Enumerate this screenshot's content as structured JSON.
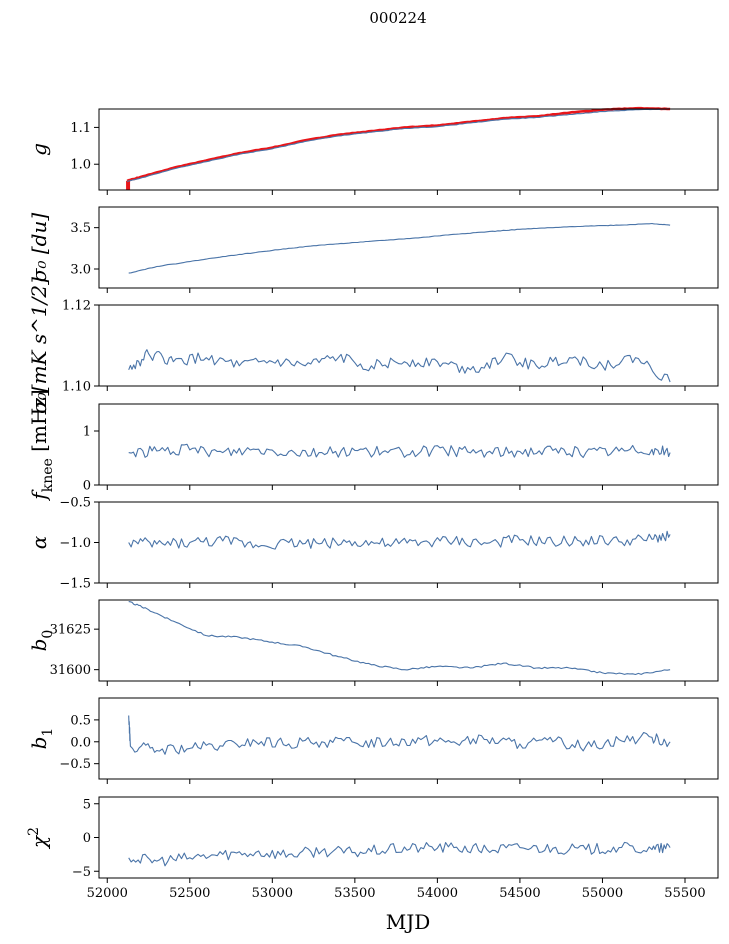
{
  "figure": {
    "title": "000224",
    "xlabel": "MJD"
  },
  "chart_data": [
    {
      "type": "line",
      "ylabel_main": "g",
      "ylabel_sub": "",
      "xlim": [
        51950,
        55700
      ],
      "ylim": [
        0.93,
        1.15
      ],
      "yticks": [
        1.0,
        1.1
      ],
      "ytick_labels": [
        "1.0",
        "1.1"
      ],
      "xticks": [
        52000,
        52500,
        53000,
        53500,
        54000,
        54500,
        55000,
        55500
      ],
      "xtick_labels": [],
      "series": [
        {
          "color": "#e8161a",
          "x": [
            52120,
            52200,
            52400,
            52600,
            52800,
            53000,
            53200,
            53400,
            53600,
            53800,
            54000,
            54200,
            54400,
            54600,
            54800,
            55000,
            55200,
            55410
          ],
          "y": [
            0.955,
            0.965,
            0.99,
            1.01,
            1.03,
            1.045,
            1.065,
            1.08,
            1.09,
            1.1,
            1.105,
            1.115,
            1.125,
            1.13,
            1.14,
            1.148,
            1.152,
            1.15
          ]
        },
        {
          "color": "#4a74a8",
          "x": [
            52120,
            52200,
            52400,
            52600,
            52800,
            53000,
            53200,
            53400,
            53600,
            53800,
            54000,
            54200,
            54400,
            54600,
            54800,
            55000,
            55200,
            55410
          ],
          "y": [
            0.953,
            0.962,
            0.987,
            1.007,
            1.027,
            1.042,
            1.062,
            1.077,
            1.087,
            1.097,
            1.102,
            1.112,
            1.122,
            1.127,
            1.135,
            1.143,
            1.148,
            1.15
          ]
        }
      ]
    },
    {
      "type": "line",
      "ylabel_main": "σ₀ [du]",
      "ylabel_sub": "",
      "xlim": [
        51950,
        55700
      ],
      "ylim": [
        2.77,
        3.75
      ],
      "yticks": [
        3.0,
        3.5
      ],
      "ytick_labels": [
        "3.0",
        "3.5"
      ],
      "xticks": [
        52000,
        52500,
        53000,
        53500,
        54000,
        54500,
        55000,
        55500
      ],
      "xtick_labels": [],
      "series": [
        {
          "color": "#4a74a8",
          "x": [
            52130,
            52300,
            52500,
            52700,
            52900,
            53100,
            53300,
            53500,
            53700,
            53900,
            54100,
            54300,
            54500,
            54700,
            54900,
            55100,
            55300,
            55410
          ],
          "y": [
            2.95,
            3.03,
            3.09,
            3.15,
            3.2,
            3.25,
            3.29,
            3.32,
            3.35,
            3.38,
            3.42,
            3.45,
            3.48,
            3.5,
            3.52,
            3.53,
            3.55,
            3.53
          ]
        }
      ]
    },
    {
      "type": "line",
      "ylabel_main": "σ₀[mK s^1/2]",
      "ylabel_sub": "",
      "xlim": [
        51950,
        55700
      ],
      "ylim": [
        1.1,
        1.12
      ],
      "yticks": [
        1.1,
        1.12
      ],
      "ytick_labels": [
        "1.10",
        "1.12"
      ],
      "xticks": [
        52000,
        52500,
        53000,
        53500,
        54000,
        54500,
        55000,
        55500
      ],
      "xtick_labels": [],
      "series": [
        {
          "color": "#4a74a8",
          "x": [
            52130,
            52250,
            52400,
            52600,
            52800,
            53000,
            53200,
            53400,
            53600,
            53800,
            54000,
            54200,
            54400,
            54600,
            54800,
            55000,
            55200,
            55410
          ],
          "y": [
            1.104,
            1.108,
            1.106,
            1.107,
            1.105,
            1.106,
            1.105,
            1.107,
            1.105,
            1.106,
            1.106,
            1.104,
            1.107,
            1.105,
            1.107,
            1.105,
            1.107,
            1.101
          ]
        }
      ]
    },
    {
      "type": "line",
      "ylabel_main": "f",
      "ylabel_sub": "knee",
      "ylabel_unit": "[mHz]",
      "xlim": [
        51950,
        55700
      ],
      "ylim": [
        0,
        1.5
      ],
      "yticks": [
        0,
        1
      ],
      "ytick_labels": [
        "0",
        "1"
      ],
      "xticks": [
        52000,
        52500,
        53000,
        53500,
        54000,
        54500,
        55000,
        55500
      ],
      "xtick_labels": [],
      "series": [
        {
          "color": "#4a74a8",
          "x": [
            52130,
            52300,
            52500,
            52700,
            52900,
            53100,
            53300,
            53500,
            53700,
            53900,
            54100,
            54300,
            54500,
            54700,
            54900,
            55100,
            55300,
            55410
          ],
          "y": [
            0.6,
            0.63,
            0.65,
            0.6,
            0.66,
            0.62,
            0.6,
            0.64,
            0.6,
            0.62,
            0.63,
            0.6,
            0.62,
            0.64,
            0.6,
            0.63,
            0.66,
            0.6
          ]
        }
      ]
    },
    {
      "type": "line",
      "ylabel_main": "α",
      "ylabel_sub": "",
      "xlim": [
        51950,
        55700
      ],
      "ylim": [
        -1.5,
        -0.5
      ],
      "yticks": [
        -1.5,
        -1.0,
        -0.5
      ],
      "ytick_labels": [
        "−1.5",
        "−1.0",
        "−0.5"
      ],
      "xticks": [
        52000,
        52500,
        53000,
        53500,
        54000,
        54500,
        55000,
        55500
      ],
      "xtick_labels": [],
      "series": [
        {
          "color": "#4a74a8",
          "x": [
            52130,
            52300,
            52500,
            52700,
            52900,
            53100,
            53300,
            53500,
            53700,
            53900,
            54100,
            54300,
            54500,
            54700,
            54900,
            55100,
            55300,
            55410
          ],
          "y": [
            -1.0,
            -1.02,
            -1.0,
            -0.98,
            -1.03,
            -1.0,
            -1.01,
            -0.99,
            -1.02,
            -1.0,
            -0.98,
            -1.01,
            -0.97,
            -1.0,
            -0.97,
            -0.99,
            -0.96,
            -0.9
          ]
        }
      ]
    },
    {
      "type": "line",
      "ylabel_main": "b",
      "ylabel_sub": "0",
      "xlim": [
        51950,
        55700
      ],
      "ylim": [
        31593,
        31643
      ],
      "yticks": [
        31600,
        31625
      ],
      "ytick_labels": [
        "31600",
        "31625"
      ],
      "xticks": [
        52000,
        52500,
        53000,
        53500,
        54000,
        54500,
        55000,
        55500
      ],
      "xtick_labels": [],
      "series": [
        {
          "color": "#4a74a8",
          "x": [
            52130,
            52250,
            52400,
            52600,
            52800,
            53000,
            53200,
            53400,
            53600,
            53800,
            54000,
            54200,
            54400,
            54600,
            54800,
            55000,
            55200,
            55410
          ],
          "y": [
            31642,
            31637,
            31630,
            31621,
            31620,
            31617,
            31614,
            31608,
            31603,
            31600,
            31602,
            31601,
            31604,
            31601,
            31601,
            31598,
            31597,
            31600
          ]
        }
      ]
    },
    {
      "type": "line",
      "ylabel_main": "b",
      "ylabel_sub": "1",
      "xlim": [
        51950,
        55700
      ],
      "ylim": [
        -0.85,
        1.0
      ],
      "yticks": [
        -0.5,
        0.0,
        0.5
      ],
      "ytick_labels": [
        "−0.5",
        "0.0",
        "0.5"
      ],
      "xticks": [
        52000,
        52500,
        53000,
        53500,
        54000,
        54500,
        55000,
        55500
      ],
      "xtick_labels": [],
      "series": [
        {
          "color": "#4a74a8",
          "x": [
            52130,
            52140,
            52300,
            52500,
            52700,
            52900,
            53100,
            53300,
            53500,
            53700,
            53900,
            54100,
            54300,
            54500,
            54700,
            54900,
            55100,
            55300,
            55410
          ],
          "y": [
            0.6,
            -0.1,
            -0.2,
            -0.15,
            -0.1,
            0.0,
            -0.05,
            0.0,
            -0.02,
            0.0,
            0.05,
            0.0,
            0.05,
            -0.05,
            0.0,
            -0.1,
            0.05,
            0.1,
            0.0
          ]
        }
      ]
    },
    {
      "type": "line",
      "ylabel_main": "χ",
      "ylabel_sup": "2",
      "ylabel_sub": "",
      "xlim": [
        51950,
        55700
      ],
      "ylim": [
        -6,
        6
      ],
      "yticks": [
        -5,
        0,
        5
      ],
      "ytick_labels": [
        "−5",
        "0",
        "5"
      ],
      "xticks": [
        52000,
        52500,
        53000,
        53500,
        54000,
        54500,
        55000,
        55500
      ],
      "xtick_labels": [
        "52000",
        "52500",
        "53000",
        "53500",
        "54000",
        "54500",
        "55000",
        "55500"
      ],
      "series": [
        {
          "color": "#4a74a8",
          "x": [
            52130,
            52300,
            52500,
            52700,
            52900,
            53100,
            53300,
            53500,
            53700,
            53900,
            54100,
            54300,
            54500,
            54700,
            54900,
            55100,
            55300,
            55410
          ],
          "y": [
            -3.0,
            -3.5,
            -3.0,
            -2.5,
            -2.2,
            -2.5,
            -2.0,
            -2.2,
            -1.8,
            -1.5,
            -1.5,
            -1.8,
            -1.5,
            -1.6,
            -1.8,
            -1.5,
            -1.8,
            -1.5
          ]
        }
      ]
    }
  ]
}
